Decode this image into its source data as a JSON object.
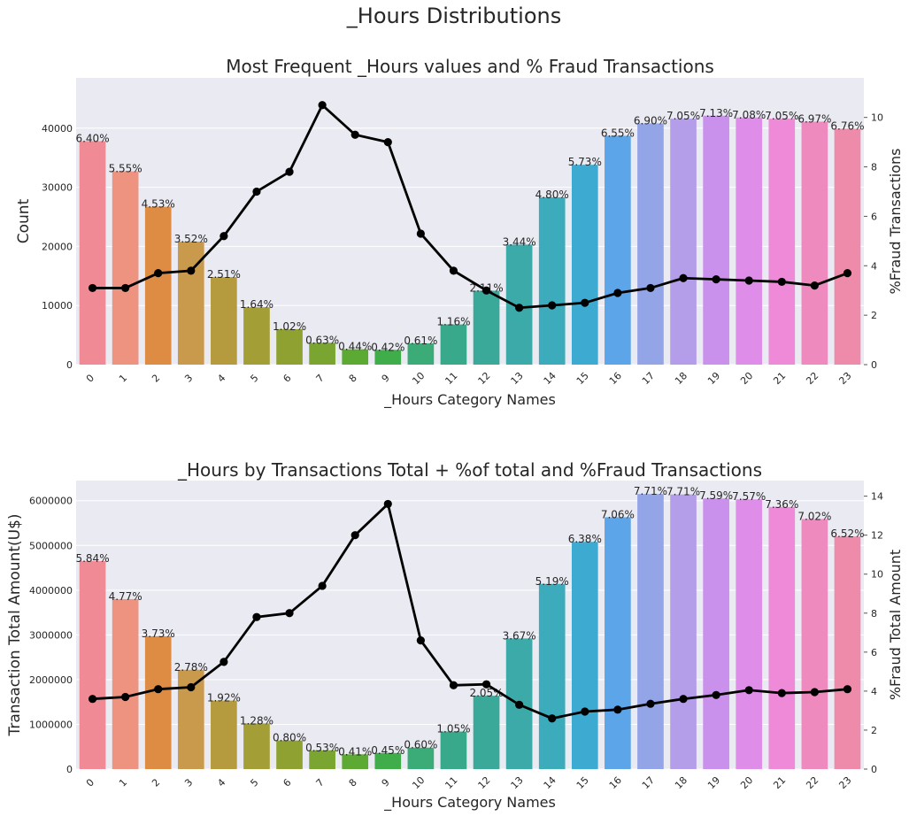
{
  "suptitle": "_Hours Distributions",
  "colors": {
    "plot_bg": "#EAEAF2",
    "grid": "#FFFFFF",
    "line": "#000000",
    "bar_palette": [
      "#F08A94",
      "#ED9380",
      "#DE8B44",
      "#C99A4C",
      "#B69B3E",
      "#A39E35",
      "#8FA231",
      "#7AA531",
      "#5CA934",
      "#3FAD49",
      "#3BAC77",
      "#39A98C",
      "#3AA99A",
      "#3BAAA9",
      "#3CABBB",
      "#3DAAD2",
      "#5BA5E8",
      "#93A4E7",
      "#B49EEA",
      "#C990EC",
      "#DE8EE8",
      "#EE8AD8",
      "#EF8ABF",
      "#EE8BAA"
    ]
  },
  "chart_data": [
    {
      "type": "bar",
      "title": "Most Frequent _Hours values and % Fraud Transactions",
      "xlabel": "_Hours Category Names",
      "ylabel": "Count",
      "ylabel_right": "%Fraud Transactions",
      "categories": [
        "0",
        "1",
        "2",
        "3",
        "4",
        "5",
        "6",
        "7",
        "8",
        "9",
        "10",
        "11",
        "12",
        "13",
        "14",
        "15",
        "16",
        "17",
        "18",
        "19",
        "20",
        "21",
        "22",
        "23"
      ],
      "bar_values": [
        37800,
        32700,
        26700,
        20800,
        14800,
        9700,
        6000,
        3700,
        2600,
        2500,
        3600,
        6800,
        12500,
        20300,
        28300,
        33800,
        38700,
        40800,
        41600,
        42100,
        41800,
        41600,
        41100,
        39900
      ],
      "bar_labels": [
        "6.40%",
        "5.55%",
        "4.53%",
        "3.52%",
        "2.51%",
        "1.64%",
        "1.02%",
        "0.63%",
        "0.44%",
        "0.42%",
        "0.61%",
        "1.16%",
        "2.11%",
        "3.44%",
        "4.80%",
        "5.73%",
        "6.55%",
        "6.90%",
        "7.05%",
        "7.13%",
        "7.08%",
        "7.05%",
        "6.97%",
        "6.76%"
      ],
      "line_values": [
        3.1,
        3.1,
        3.7,
        3.8,
        5.2,
        7.0,
        7.8,
        10.5,
        9.3,
        9.0,
        5.3,
        3.8,
        3.0,
        2.3,
        2.4,
        2.5,
        2.9,
        3.1,
        3.5,
        3.45,
        3.4,
        3.35,
        3.2,
        3.7
      ],
      "yticks_left": [
        0,
        10000,
        20000,
        30000,
        40000
      ],
      "yticks_right": [
        0,
        2,
        4,
        6,
        8,
        10
      ],
      "ylim_left": [
        0,
        48500
      ],
      "ylim_right": [
        0,
        11.6
      ]
    },
    {
      "type": "bar",
      "title": "_Hours by Transactions Total + %of total and %Fraud Transactions",
      "xlabel": "_Hours Category Names",
      "ylabel": "Transaction Total Amount(U$)",
      "ylabel_right": "%Fraud Total Amount",
      "categories": [
        "0",
        "1",
        "2",
        "3",
        "4",
        "5",
        "6",
        "7",
        "8",
        "9",
        "10",
        "11",
        "12",
        "13",
        "14",
        "15",
        "16",
        "17",
        "18",
        "19",
        "20",
        "21",
        "22",
        "23"
      ],
      "bar_values": [
        4650000,
        3800000,
        2970000,
        2220000,
        1530000,
        1020000,
        640000,
        420000,
        330000,
        360000,
        480000,
        840000,
        1640000,
        2920000,
        4140000,
        5080000,
        5630000,
        6150000,
        6140000,
        6050000,
        6030000,
        5860000,
        5590000,
        5200000
      ],
      "bar_labels": [
        "5.84%",
        "4.77%",
        "3.73%",
        "2.78%",
        "1.92%",
        "1.28%",
        "0.80%",
        "0.53%",
        "0.41%",
        "0.45%",
        "0.60%",
        "1.05%",
        "2.05%",
        "3.67%",
        "5.19%",
        "6.38%",
        "7.06%",
        "7.71%",
        "7.71%",
        "7.59%",
        "7.57%",
        "7.36%",
        "7.02%",
        "6.52%"
      ],
      "line_values": [
        3.6,
        3.7,
        4.1,
        4.2,
        5.5,
        7.8,
        8.0,
        9.4,
        12.0,
        13.6,
        6.6,
        4.3,
        4.35,
        3.3,
        2.6,
        2.95,
        3.05,
        3.35,
        3.6,
        3.8,
        4.05,
        3.9,
        3.95,
        4.1
      ],
      "yticks_left": [
        0,
        1000000,
        2000000,
        3000000,
        4000000,
        5000000,
        6000000
      ],
      "yticks_right": [
        0,
        2,
        4,
        6,
        8,
        10,
        12,
        14
      ],
      "ylim_left": [
        0,
        6450000
      ],
      "ylim_right": [
        0,
        14.8
      ]
    }
  ]
}
